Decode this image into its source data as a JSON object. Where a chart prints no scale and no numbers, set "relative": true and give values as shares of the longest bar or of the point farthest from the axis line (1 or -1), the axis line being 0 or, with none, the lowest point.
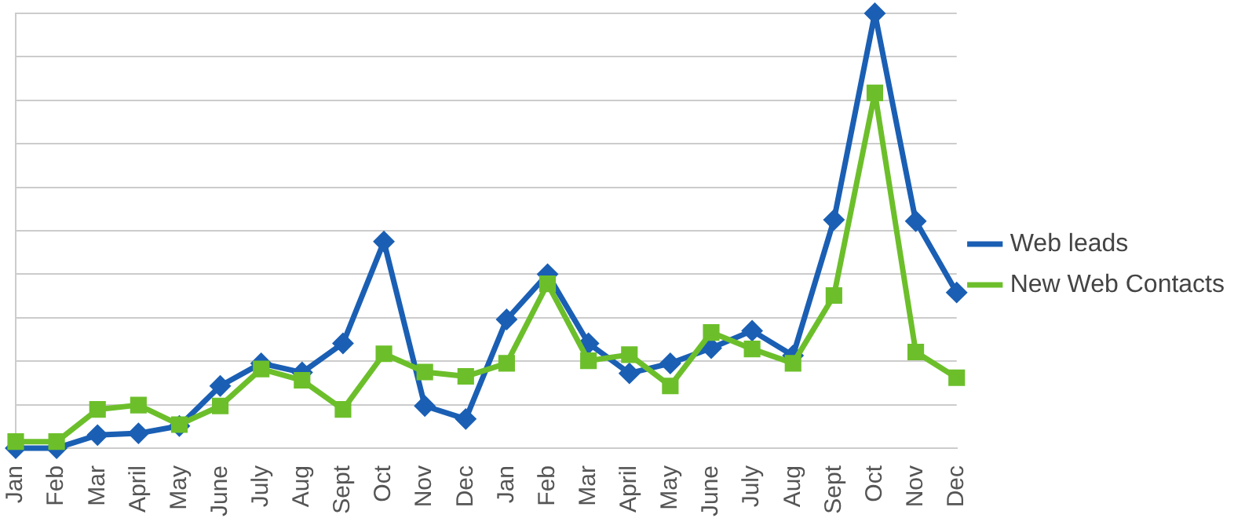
{
  "chart_data": {
    "type": "line",
    "relative": true,
    "grid": "y",
    "legend": "right",
    "categories": [
      "Jan",
      "Feb",
      "Mar",
      "April",
      "May",
      "June",
      "July",
      "Aug",
      "Sept",
      "Oct",
      "Nov",
      "Dec",
      "Jan",
      "Feb",
      "Mar",
      "April",
      "May",
      "June",
      "July",
      "Aug",
      "Sept",
      "Oct",
      "Nov",
      "Dec"
    ],
    "series": [
      {
        "name": "Web leads",
        "color": "#1a5fb4",
        "marker": "diamond",
        "values": [
          0,
          0,
          0.03,
          0.034,
          0.051,
          0.143,
          0.195,
          0.174,
          0.241,
          0.475,
          0.097,
          0.067,
          0.296,
          0.4,
          0.241,
          0.172,
          0.195,
          0.23,
          0.27,
          0.213,
          0.525,
          1,
          0.522,
          0.358
        ]
      },
      {
        "name": "New Web Contacts",
        "color": "#6cbf2a",
        "marker": "square",
        "values": [
          0.015,
          0.015,
          0.089,
          0.099,
          0.054,
          0.097,
          0.182,
          0.156,
          0.089,
          0.217,
          0.175,
          0.165,
          0.195,
          0.378,
          0.201,
          0.215,
          0.143,
          0.266,
          0.228,
          0.195,
          0.351,
          0.817,
          0.221,
          0.162
        ]
      }
    ]
  }
}
